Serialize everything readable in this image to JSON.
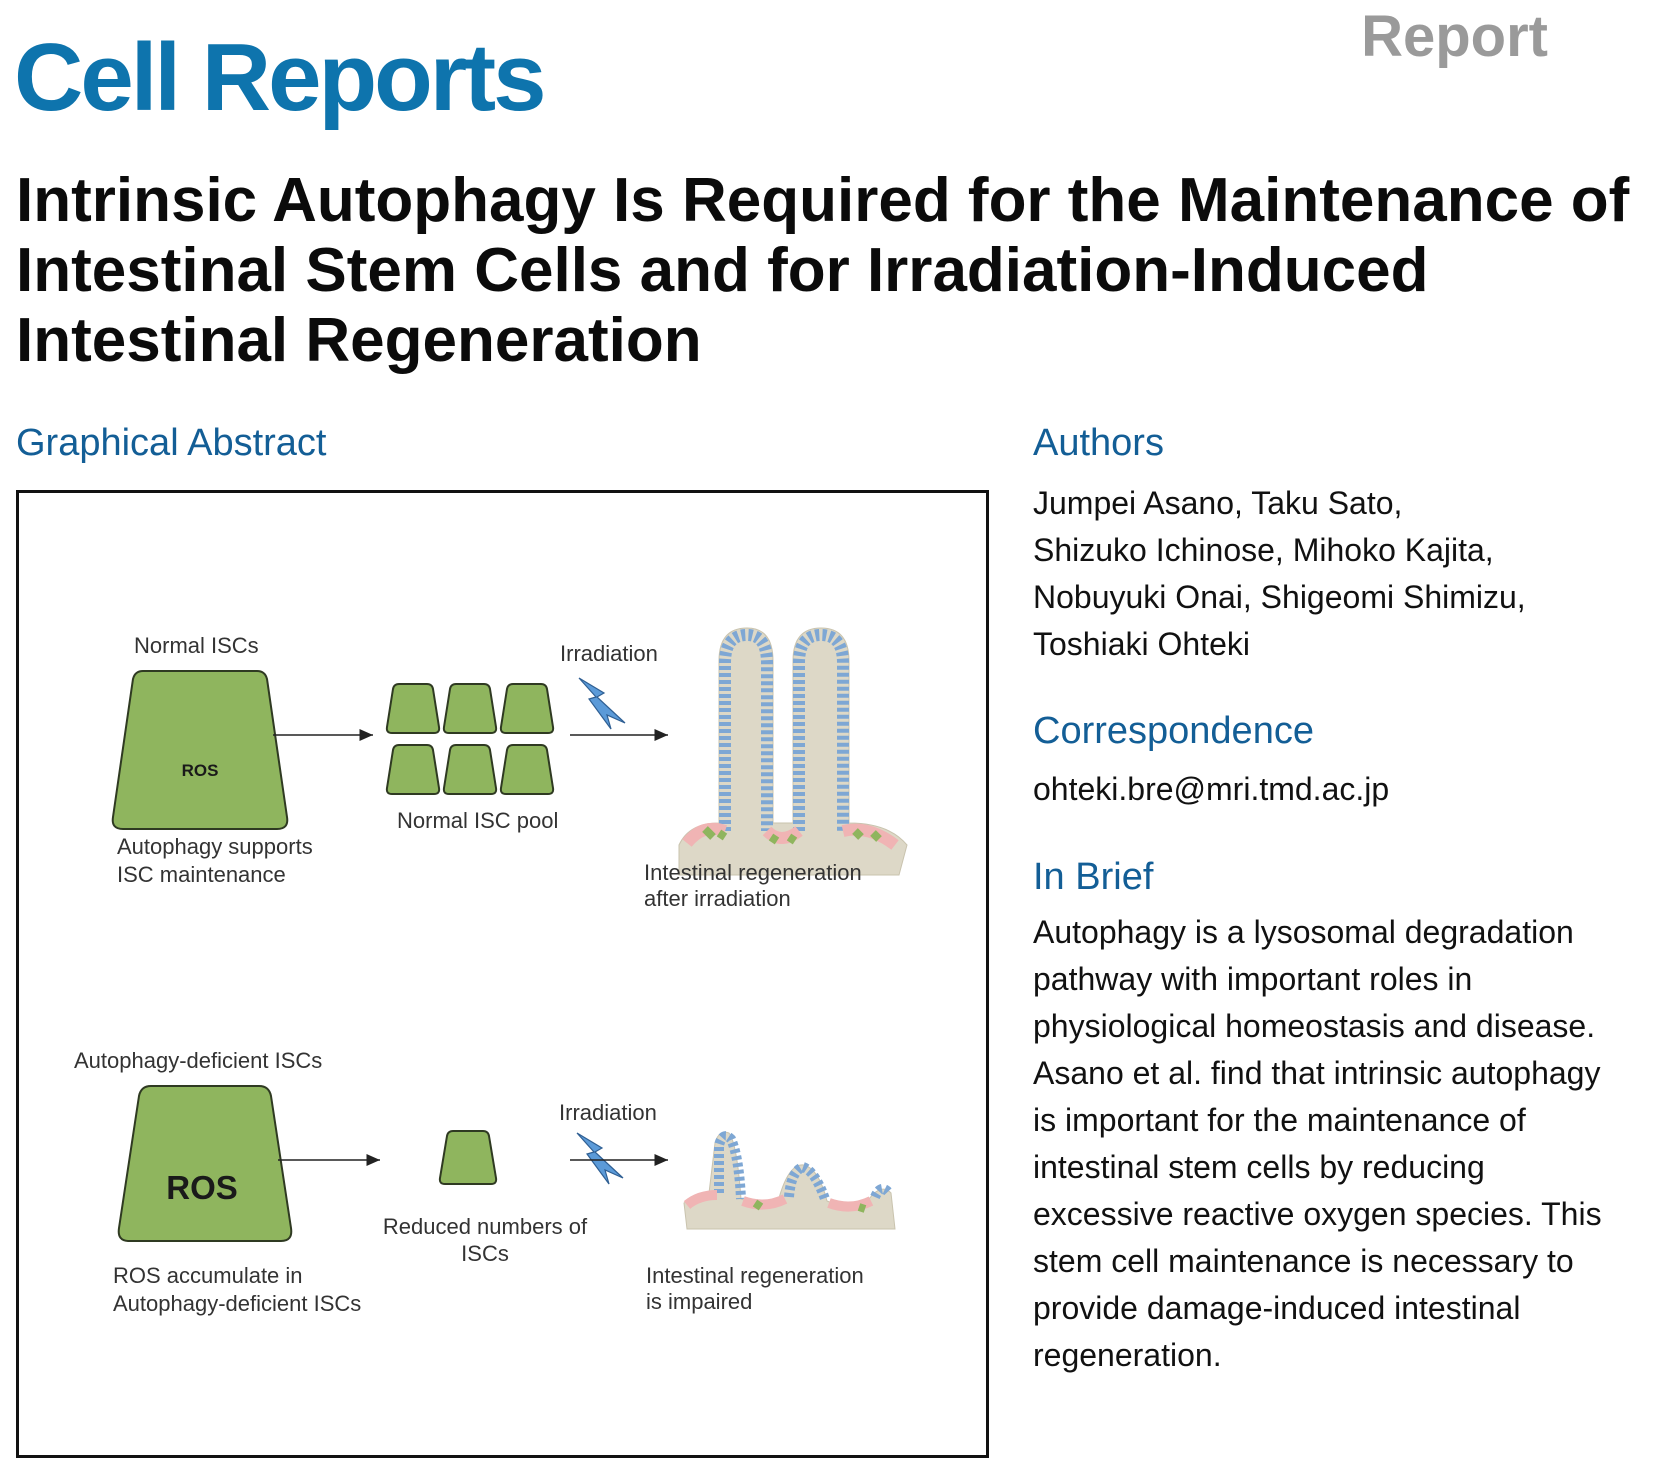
{
  "header": {
    "journal": "Cell Reports",
    "article_type": "Report"
  },
  "title": "Intrinsic Autophagy Is Required for the Maintenance of Intestinal Stem Cells and for Irradiation-Induced Intestinal Regeneration",
  "graphical_abstract": {
    "heading": "Graphical Abstract",
    "top": {
      "cell_label": "Normal ISCs",
      "ros": "ROS",
      "caption_line1": "Autophagy supports",
      "caption_line2": "ISC maintenance",
      "pool_label": "Normal ISC pool",
      "irradiation": "Irradiation",
      "result_line1": "Intestinal regeneration",
      "result_line2": "after irradiation"
    },
    "bottom": {
      "cell_label": "Autophagy-deficient ISCs",
      "ros": "ROS",
      "caption_line1": "ROS accumulate in",
      "caption_line2": "Autophagy-deficient ISCs",
      "pool_line1": "Reduced numbers of",
      "pool_line2": "ISCs",
      "irradiation": "Irradiation",
      "result_line1": "Intestinal regeneration",
      "result_line2": "is impaired"
    },
    "colors": {
      "cell_fill": "#8fb55e",
      "cell_stroke": "#2f3a22",
      "tissue": "#ddd8c7",
      "epithelium_blue": "#7ea7d4",
      "stem_pink": "#f0b4b4",
      "stem_green": "#8fb55e",
      "lightning": "#5b9ad8"
    }
  },
  "authors": {
    "heading": "Authors",
    "lines": [
      "Jumpei Asano, Taku Sato,",
      "Shizuko Ichinose, Mihoko Kajita,",
      "Nobuyuki Onai, Shigeomi Shimizu,",
      "Toshiaki Ohteki"
    ]
  },
  "correspondence": {
    "heading": "Correspondence",
    "email": "ohteki.bre@mri.tmd.ac.jp"
  },
  "in_brief": {
    "heading": "In Brief",
    "lines": [
      "Autophagy is a lysosomal degradation",
      "pathway with important roles in",
      "physiological homeostasis and disease.",
      "Asano et al. find that intrinsic autophagy",
      "is important for the maintenance of",
      "intestinal stem cells by reducing",
      "excessive reactive oxygen species. This",
      "stem cell maintenance is necessary to",
      "provide damage-induced intestinal",
      "regeneration."
    ]
  }
}
